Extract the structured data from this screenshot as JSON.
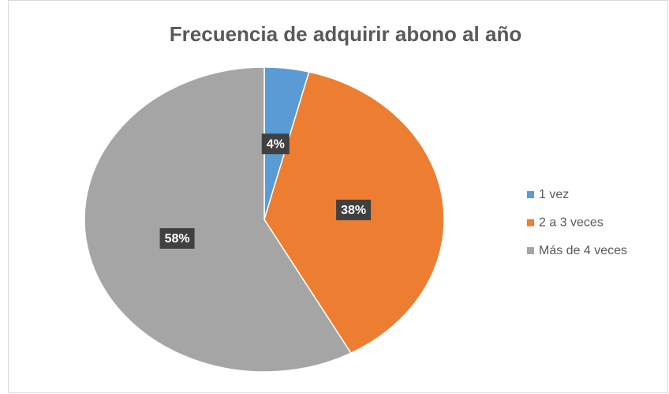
{
  "chart_data": {
    "type": "pie",
    "title": "Frecuencia de adquirir abono al año",
    "categories": [
      "1 vez",
      "2 a 3 veces",
      "Más de 4 veces"
    ],
    "values": [
      4,
      38,
      58
    ],
    "value_labels": [
      "4%",
      "38%",
      "58%"
    ],
    "colors": [
      "#5b9bd5",
      "#ed7d31",
      "#a5a5a5"
    ],
    "legend": "right"
  }
}
